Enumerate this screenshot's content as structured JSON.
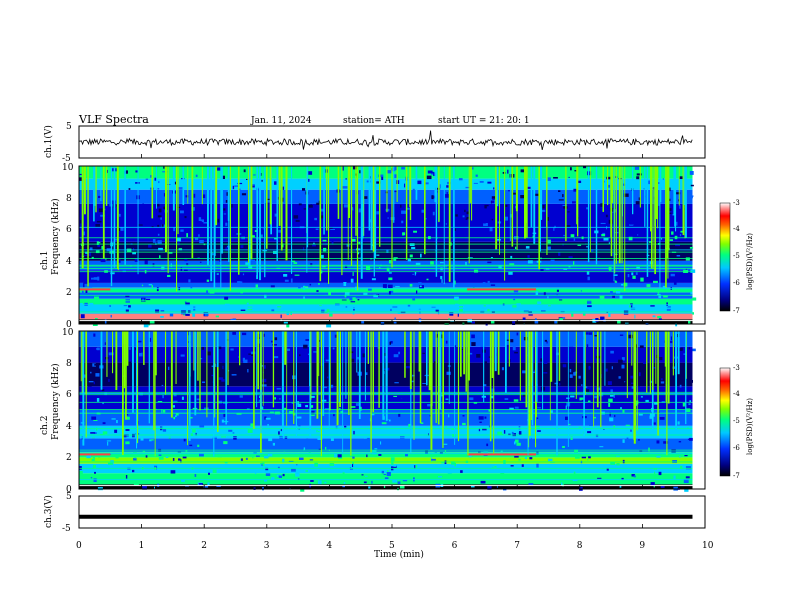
{
  "header": {
    "title": "VLF  Spectra",
    "date": "Jan.  11,  2024",
    "station": "station= ATH",
    "start": "start  UT  =    21: 20: 1"
  },
  "chart_data": [
    {
      "type": "line",
      "panel": "ch1-waveform",
      "ylabel": "ch.1(V)",
      "xlim": [
        0,
        10
      ],
      "ylim": [
        -5,
        5
      ],
      "yticks": [
        "5",
        "-5"
      ],
      "description_values": {
        "baseline": 0.0,
        "noise_amplitude": 1.0
      },
      "color": "#000000"
    },
    {
      "type": "heatmap",
      "panel": "ch1-spectrogram",
      "ylabel": "ch.1\nFrequency  (kHz)",
      "xlim": [
        0,
        9.8
      ],
      "ylim": [
        0,
        10
      ],
      "yticks": [
        "0",
        "2",
        "4",
        "6",
        "8",
        "10"
      ],
      "colorbar": {
        "label": "log(PSD)(V²/Hz)",
        "min": -7,
        "max": -3,
        "ticks": [
          "-3",
          "-4",
          "-5",
          "-6",
          "-7"
        ]
      }
    },
    {
      "type": "heatmap",
      "panel": "ch2-spectrogram",
      "ylabel": "ch.2\nFrequency  (kHz)",
      "xlim": [
        0,
        9.8
      ],
      "ylim": [
        0,
        10
      ],
      "yticks": [
        "0",
        "2",
        "4",
        "6",
        "8",
        "10"
      ],
      "colorbar": {
        "label": "log(PSD)(V²/Hz)",
        "min": -7,
        "max": -3,
        "ticks": [
          "-3",
          "-4",
          "-5",
          "-6",
          "-7"
        ]
      }
    },
    {
      "type": "line",
      "panel": "ch3-waveform",
      "ylabel": "ch.3(V)",
      "xlim": [
        0,
        10
      ],
      "ylim": [
        -5,
        5
      ],
      "yticks": [
        "5",
        "0",
        "-5"
      ],
      "x": [
        0,
        9.8
      ],
      "y": [
        -1.5,
        -1.5
      ],
      "color": "#000000"
    }
  ],
  "xaxis": {
    "label": "Time  (min)",
    "ticks": [
      "0",
      "1",
      "2",
      "3",
      "4",
      "5",
      "6",
      "7",
      "8",
      "9",
      "10"
    ]
  },
  "colors": {
    "background": "#ffffff",
    "colormap": [
      "#000000",
      "#000060",
      "#0000d0",
      "#0060ff",
      "#00d0ff",
      "#00ff80",
      "#80ff00",
      "#ffff00",
      "#ff8000",
      "#ff0000",
      "#ff8080",
      "#ffffff"
    ]
  }
}
